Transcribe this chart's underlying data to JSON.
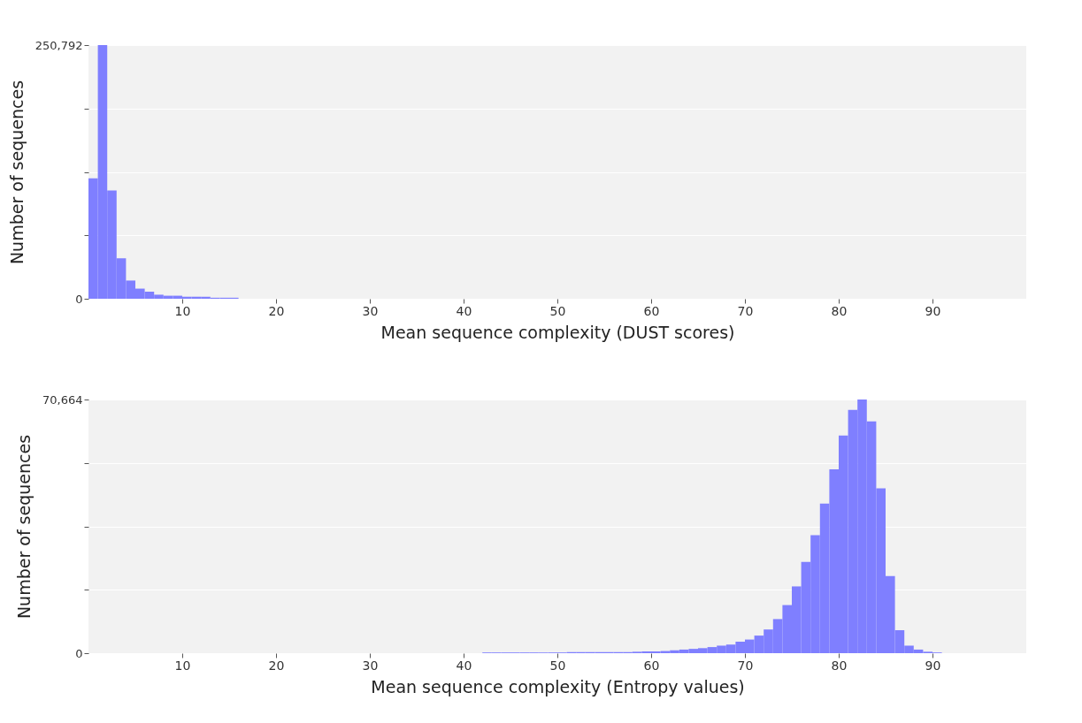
{
  "chart_data": [
    {
      "type": "histogram",
      "xlabel": "Mean sequence complexity (DUST scores)",
      "ylabel": "Number of sequences",
      "color": "#7f7fff",
      "bins": [
        0,
        1,
        2,
        3,
        4,
        5,
        6,
        7,
        8,
        9,
        10,
        11,
        12,
        13,
        14,
        15,
        16
      ],
      "values": [
        119000,
        250792,
        107000,
        40000,
        18000,
        10000,
        7000,
        4000,
        3000,
        3000,
        2000,
        2000,
        2000,
        1000,
        1000,
        1000
      ],
      "xlim": [
        0,
        100
      ],
      "xticks": [
        10,
        20,
        30,
        40,
        50,
        60,
        70,
        80,
        90
      ],
      "ylim": [
        0,
        250792
      ],
      "yticks": [
        0,
        {
          "value": 62698,
          "label": null
        },
        {
          "value": 125396,
          "label": null
        },
        {
          "value": 188094,
          "label": null
        },
        {
          "value": 250792,
          "label": "250,792"
        }
      ],
      "grid": "y"
    },
    {
      "type": "histogram",
      "xlabel": "Mean sequence complexity (Entropy values)",
      "ylabel": "Number of sequences",
      "color": "#7f7fff",
      "bins": [
        42,
        43,
        44,
        45,
        46,
        47,
        48,
        49,
        50,
        51,
        52,
        53,
        54,
        55,
        56,
        57,
        58,
        59,
        60,
        61,
        62,
        63,
        64,
        65,
        66,
        67,
        68,
        69,
        70,
        71,
        72,
        73,
        74,
        75,
        76,
        77,
        78,
        79,
        80,
        81,
        82,
        83,
        84,
        85,
        86,
        87,
        88,
        89,
        90,
        91
      ],
      "values": [
        200,
        200,
        200,
        200,
        200,
        200,
        200,
        200,
        200,
        300,
        300,
        300,
        300,
        300,
        300,
        300,
        400,
        500,
        500,
        600,
        800,
        1000,
        1200,
        1400,
        1700,
        2100,
        2400,
        3200,
        3800,
        4900,
        6600,
        9500,
        13400,
        18600,
        25400,
        32900,
        41700,
        51200,
        60600,
        67800,
        70664,
        64600,
        45900,
        21500,
        6400,
        2100,
        1000,
        400,
        200
      ],
      "xlim": [
        0,
        100
      ],
      "xticks": [
        10,
        20,
        30,
        40,
        50,
        60,
        70,
        80,
        90
      ],
      "ylim": [
        0,
        70664
      ],
      "yticks": [
        0,
        {
          "value": 17666,
          "label": null
        },
        {
          "value": 35332,
          "label": null
        },
        {
          "value": 52998,
          "label": null
        },
        {
          "value": 70664,
          "label": "70,664"
        }
      ],
      "grid": "y"
    }
  ]
}
